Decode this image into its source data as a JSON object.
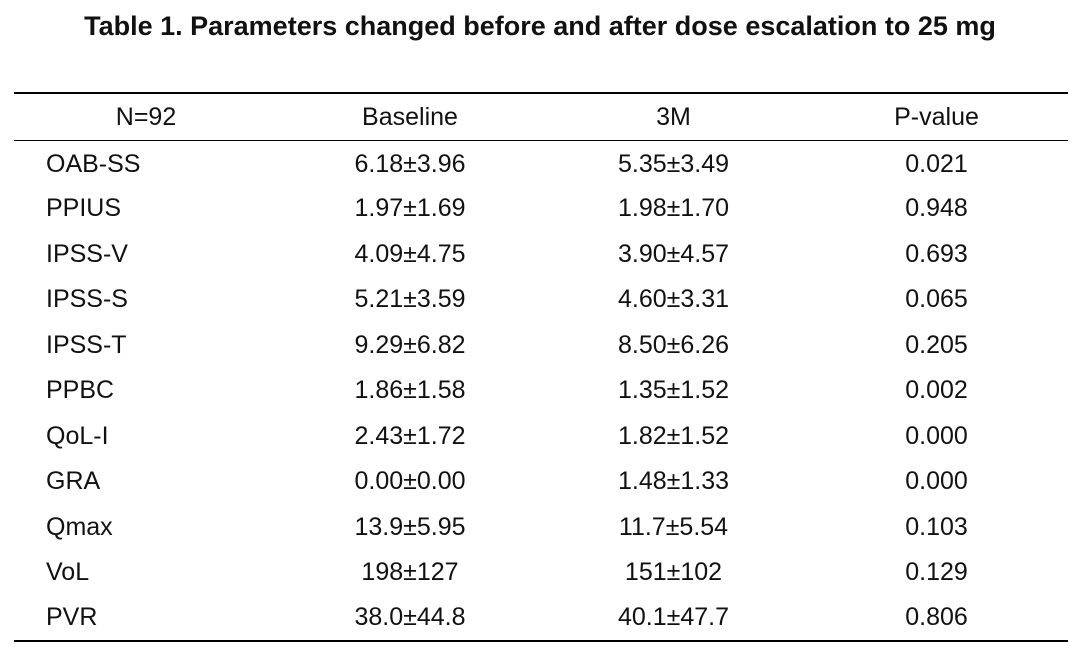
{
  "caption": "Table 1. Parameters changed before and after dose escalation to 25 mg",
  "table": {
    "headers": [
      "N=92",
      "Baseline",
      "3M",
      "P-value"
    ],
    "rows": [
      {
        "param": "OAB-SS",
        "baseline": "6.18±3.96",
        "m3": "5.35±3.49",
        "p": "0.021"
      },
      {
        "param": "PPIUS",
        "baseline": "1.97±1.69",
        "m3": "1.98±1.70",
        "p": "0.948"
      },
      {
        "param": "IPSS-V",
        "baseline": "4.09±4.75",
        "m3": "3.90±4.57",
        "p": "0.693"
      },
      {
        "param": "IPSS-S",
        "baseline": "5.21±3.59",
        "m3": "4.60±3.31",
        "p": "0.065"
      },
      {
        "param": "IPSS-T",
        "baseline": "9.29±6.82",
        "m3": "8.50±6.26",
        "p": "0.205"
      },
      {
        "param": "PPBC",
        "baseline": "1.86±1.58",
        "m3": "1.35±1.52",
        "p": "0.002"
      },
      {
        "param": "QoL-I",
        "baseline": "2.43±1.72",
        "m3": "1.82±1.52",
        "p": "0.000"
      },
      {
        "param": "GRA",
        "baseline": "0.00±0.00",
        "m3": "1.48±1.33",
        "p": "0.000"
      },
      {
        "param": "Qmax",
        "baseline": "13.9±5.95",
        "m3": "11.7±5.54",
        "p": "0.103"
      },
      {
        "param": "VoL",
        "baseline": "198±127",
        "m3": "151±102",
        "p": "0.129"
      },
      {
        "param": "PVR",
        "baseline": "38.0±44.8",
        "m3": "40.1±47.7",
        "p": "0.806"
      }
    ]
  }
}
